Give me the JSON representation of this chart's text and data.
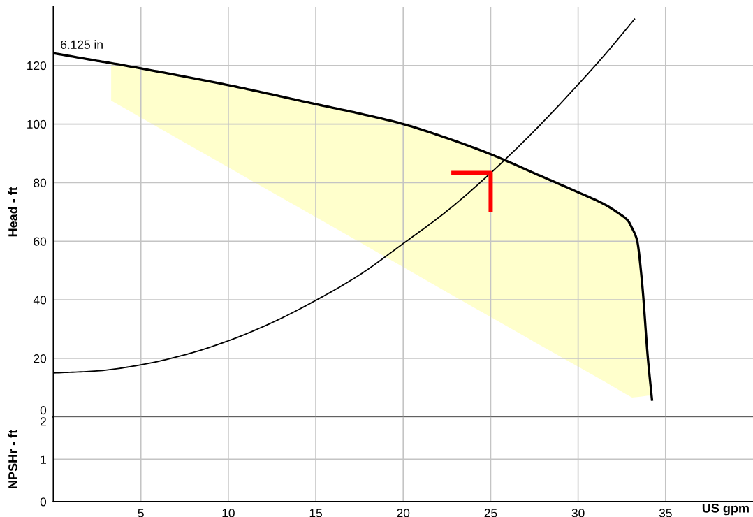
{
  "chart_data": [
    {
      "type": "line",
      "ylabel": "Head - ft",
      "xlim": [
        0,
        40
      ],
      "xticks": [
        5,
        10,
        15,
        20,
        25,
        30,
        35
      ],
      "ylim": [
        0,
        140
      ],
      "yticks": [
        0,
        20,
        40,
        60,
        80,
        100,
        120
      ],
      "grid": true,
      "tick_labels": "y",
      "series": [
        {
          "name": "6.125 in",
          "color": "#000000",
          "x": [
            0,
            2.5,
            3.3,
            5,
            7.5,
            10,
            12.5,
            15,
            17.5,
            20,
            22.5,
            25,
            27.5,
            30,
            31.5,
            32.3,
            32.85,
            33.09,
            33.16,
            33.37,
            33.64,
            33.99,
            34.2,
            34.23
          ],
          "values": [
            124.2,
            121.6,
            120.8,
            119.0,
            116.2,
            113.3,
            110.1,
            106.8,
            103.6,
            100.0,
            95.2,
            89.7,
            83.2,
            76.7,
            72.6,
            69.6,
            67.0,
            64.4,
            63.6,
            60.3,
            46.9,
            20.0,
            7.3,
            5.5
          ],
          "upper": [
            null,
            null,
            120.8,
            119.0,
            116.2,
            113.3,
            110.1,
            106.8,
            103.6,
            100.0,
            95.2,
            89.7,
            83.2,
            76.7,
            72.6,
            69.6,
            67.0,
            64.4,
            63.6,
            60.3,
            46.9,
            20.0,
            7.3,
            null
          ],
          "lower": [
            null,
            null,
            108.0,
            102.2,
            93.7,
            85.2,
            76.7,
            68.2,
            59.7,
            51.2,
            42.6,
            34.1,
            25.6,
            17.2,
            12.1,
            9.3,
            7.4,
            6.6,
            6.7,
            6.8,
            7.0,
            7.3,
            7.3,
            null
          ]
        },
        {
          "color": "#000000",
          "x": [
            0,
            2.5,
            5,
            7.5,
            10,
            12.5,
            15,
            17.5,
            20,
            22.5,
            25,
            27.5,
            30,
            31.5,
            33.25
          ],
          "values": [
            15.0,
            15.7,
            17.8,
            21.2,
            26.0,
            32.2,
            39.8,
            48.5,
            59.2,
            70.3,
            83.3,
            97.7,
            113.5,
            123.5,
            136.0
          ]
        },
        {
          "color": "#ff0000",
          "x": [
            22.75,
            25,
            25
          ],
          "values": [
            83.3,
            83.3,
            70.0
          ]
        }
      ]
    },
    {
      "type": "line",
      "xlabel": "US gpm",
      "ylabel": "NPSHr - ft",
      "xlim": [
        0,
        40
      ],
      "xticks": [
        5,
        10,
        15,
        20,
        25,
        30,
        35
      ],
      "ylim": [
        0,
        2
      ],
      "yticks": [
        0,
        1,
        2
      ],
      "grid": true
    }
  ]
}
